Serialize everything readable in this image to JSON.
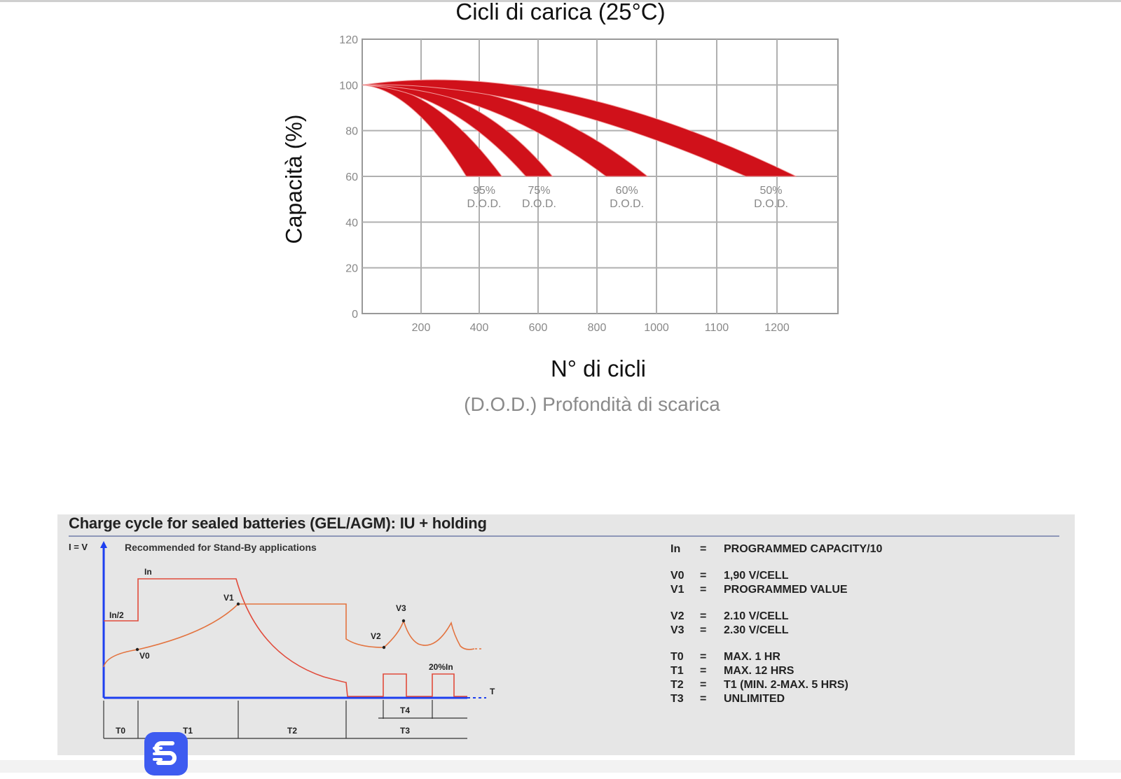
{
  "chart_data": {
    "type": "area",
    "title": "Cicli di carica (25°C)",
    "xlabel": "N° di cicli",
    "ylabel": "Capacità (%)",
    "subtitle": "(D.O.D.) Profondità di scarica",
    "xlim": [
      0,
      1600
    ],
    "ylim": [
      0,
      120
    ],
    "grid": true,
    "x_ticks": [
      200,
      400,
      600,
      800,
      1000,
      1100,
      1200
    ],
    "y_ticks": [
      0,
      20,
      40,
      60,
      80,
      100,
      120
    ],
    "series": [
      {
        "name": "95% D.O.D.",
        "label": [
          "95%",
          "D.O.D."
        ],
        "start": [
          0,
          100
        ],
        "upper_end": [
          470,
          60
        ],
        "lower_end": [
          350,
          60
        ],
        "upper_ctrl": [
          230,
          102
        ],
        "lower_ctrl": [
          170,
          98
        ]
      },
      {
        "name": "75% D.O.D.",
        "label": [
          "75%",
          "D.O.D."
        ],
        "start": [
          0,
          100
        ],
        "upper_end": [
          640,
          60
        ],
        "lower_end": [
          550,
          60
        ],
        "upper_ctrl": [
          360,
          104
        ],
        "lower_ctrl": [
          290,
          98
        ]
      },
      {
        "name": "60% D.O.D.",
        "label": [
          "60%",
          "D.O.D."
        ],
        "start": [
          0,
          100
        ],
        "upper_end": [
          960,
          60
        ],
        "lower_end": [
          820,
          60
        ],
        "upper_ctrl": [
          520,
          106
        ],
        "lower_ctrl": [
          420,
          99
        ]
      },
      {
        "name": "50% D.O.D.",
        "label": [
          "50%",
          "D.O.D."
        ],
        "start": [
          0,
          100
        ],
        "upper_end": [
          1460,
          60
        ],
        "lower_end": [
          1290,
          60
        ],
        "upper_ctrl": [
          640,
          112
        ],
        "lower_ctrl": [
          560,
          102
        ]
      }
    ],
    "colors": {
      "band": "#d0111a",
      "band_edge": "#f29a9a",
      "grid": "#b0b0b0",
      "frame": "#999999"
    }
  },
  "charge_cycle": {
    "title": "Charge cycle for sealed batteries (GEL/AGM): IU + holding",
    "note": "Recommended for Stand-By applications",
    "axis_label": "I = V",
    "t_label": "T",
    "curve_labels": {
      "In": "In",
      "In2": "In/2",
      "V0": "V0",
      "V1": "V1",
      "V2": "V2",
      "V3": "V3",
      "pulse": "20%In"
    },
    "time_labels": {
      "T0": "T0",
      "T1": "T1",
      "T2": "T2",
      "T3": "T3",
      "T4": "T4"
    },
    "legend": [
      {
        "key": "In",
        "eq": "=",
        "value": "PROGRAMMED CAPACITY/10",
        "gap": false
      },
      {
        "key": "V0",
        "eq": "=",
        "value": "1,90 V/CELL",
        "gap": true
      },
      {
        "key": "V1",
        "eq": "=",
        "value": "PROGRAMMED VALUE",
        "gap": false
      },
      {
        "key": "V2",
        "eq": "=",
        "value": "2.10 V/CELL",
        "gap": true
      },
      {
        "key": "V3",
        "eq": "=",
        "value": "2.30 V/CELL",
        "gap": false
      },
      {
        "key": "T0",
        "eq": "=",
        "value": "MAX. 1 HR",
        "gap": true
      },
      {
        "key": "T1",
        "eq": "=",
        "value": "MAX. 12 HRS",
        "gap": false
      },
      {
        "key": "T2",
        "eq": "=",
        "value": "T1 (MIN. 2-MAX. 5 HRS)",
        "gap": false
      },
      {
        "key": "T3",
        "eq": "=",
        "value": "UNLIMITED",
        "gap": false
      }
    ],
    "colors": {
      "current": "#e14b3b",
      "voltage": "#e3733f",
      "axis": "#1d3ff0",
      "line": "#333333"
    }
  }
}
